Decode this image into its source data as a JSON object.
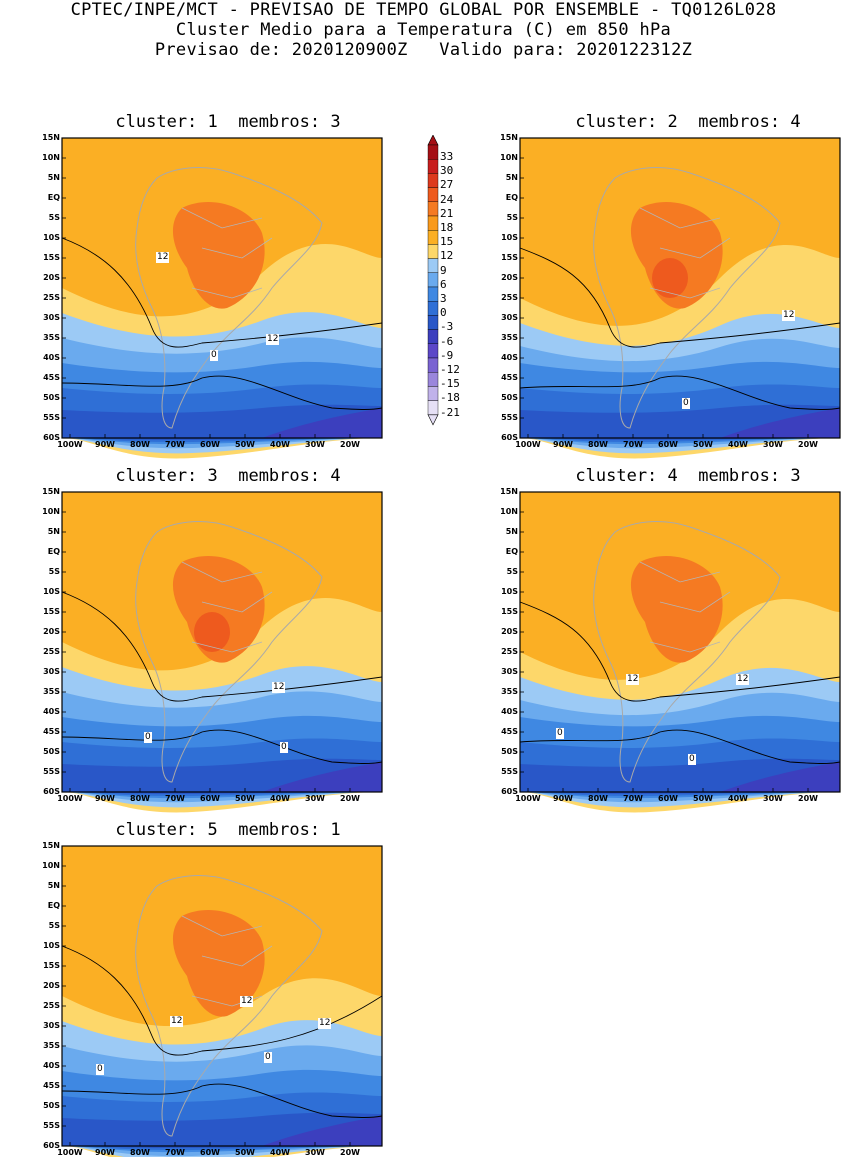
{
  "header": {
    "line1": "CPTEC/INPE/MCT - PREVISAO DE TEMPO GLOBAL POR ENSEMBLE - TQ0126L028",
    "line2": "Cluster Medio para a Temperatura (C) em 850 hPa",
    "line3": "Previsao de: 2020120900Z   Valido para: 2020122312Z"
  },
  "panels": [
    {
      "title": "cluster: 1  membros: 3",
      "contour_labels": [
        "12",
        "12",
        "0"
      ]
    },
    {
      "title": "cluster: 2  membros: 4",
      "contour_labels": [
        "12",
        "0"
      ]
    },
    {
      "title": "cluster: 3  membros: 4",
      "contour_labels": [
        "12",
        "0",
        "0"
      ]
    },
    {
      "title": "cluster: 4  membros: 3",
      "contour_labels": [
        "12",
        "12",
        "0",
        "0"
      ]
    },
    {
      "title": "cluster: 5  membros: 1",
      "contour_labels": [
        "12",
        "12",
        "12",
        "0",
        "0"
      ]
    }
  ],
  "axes": {
    "lat_labels": [
      "15N",
      "10N",
      "5N",
      "EQ",
      "5S",
      "10S",
      "15S",
      "20S",
      "25S",
      "30S",
      "35S",
      "40S",
      "45S",
      "50S",
      "55S",
      "60S"
    ],
    "lon_labels": [
      "100W",
      "90W",
      "80W",
      "70W",
      "60W",
      "50W",
      "40W",
      "30W",
      "20W"
    ]
  },
  "colorbar": {
    "labels": [
      "33",
      "30",
      "27",
      "24",
      "21",
      "18",
      "15",
      "12",
      "9",
      "6",
      "3",
      "0",
      "-3",
      "-6",
      "-9",
      "-12",
      "-15",
      "-18",
      "-21"
    ],
    "colors": [
      "#a50f15",
      "#c81e1e",
      "#dd3a1e",
      "#ee5a1e",
      "#f57a22",
      "#f99a1c",
      "#fbaf24",
      "#fdd76a",
      "#9ccaf5",
      "#6aaaee",
      "#3f88e2",
      "#2f6fd6",
      "#2957c8",
      "#3c3fbe",
      "#5c47c8",
      "#7a63d2",
      "#9a86dc",
      "#c0b2ea",
      "#e6e0f6"
    ]
  }
}
